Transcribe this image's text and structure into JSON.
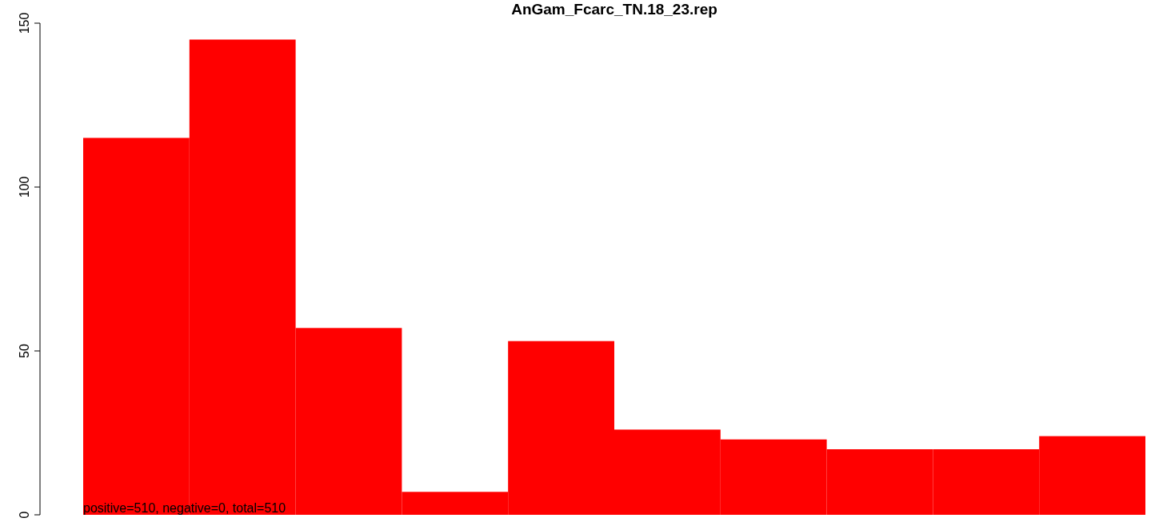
{
  "chart_data": {
    "type": "bar",
    "title": "AnGam_Fcarc_TN.18_23.rep",
    "categories": [
      null,
      null,
      null,
      null,
      null,
      null,
      null,
      null,
      null,
      null
    ],
    "values": [
      115,
      145,
      57,
      7,
      53,
      26,
      23,
      20,
      20,
      24
    ],
    "color": "#ff0000",
    "ylim": [
      0,
      150
    ],
    "yticks": [
      0,
      50,
      100,
      150
    ],
    "annotations": [
      "positive=510, negative=0, total=510"
    ]
  }
}
